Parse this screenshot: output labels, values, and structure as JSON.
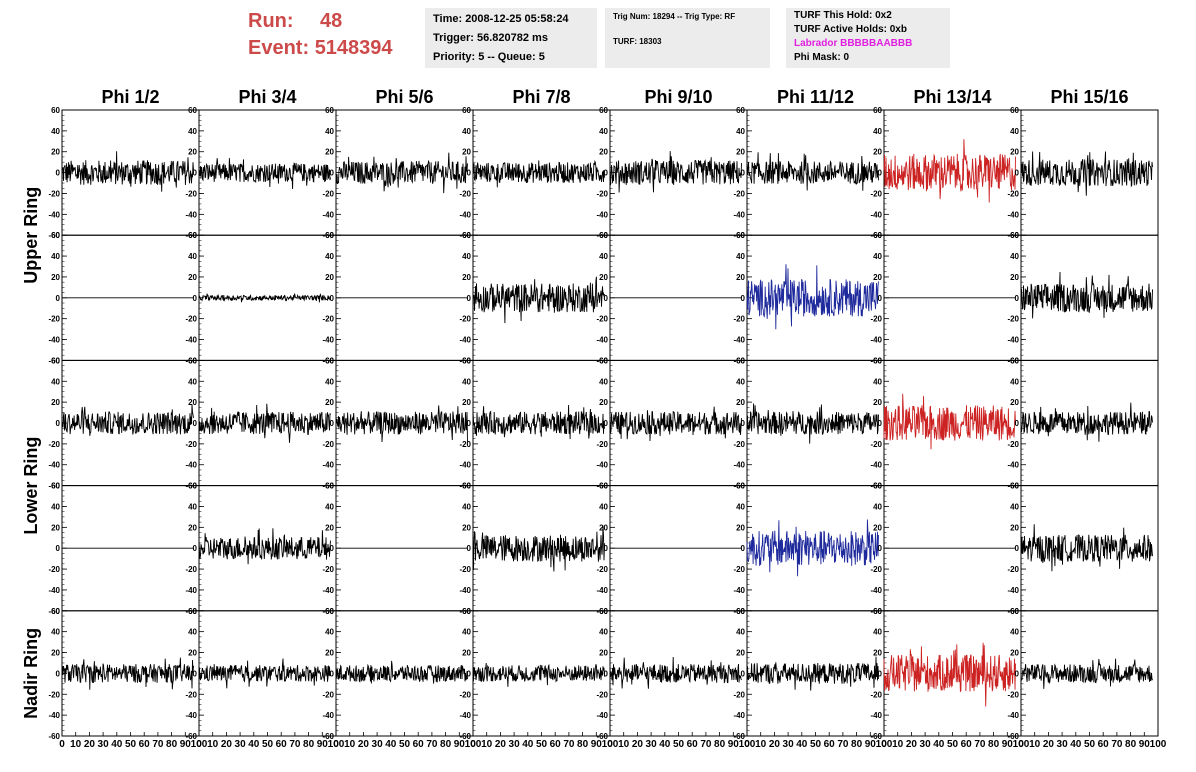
{
  "header": {
    "run_label": "Run:",
    "run_value": "48",
    "event_label": "Event:",
    "event_value": "5148394",
    "time": "Time: 2008-12-25 05:58:24",
    "trigger": "Trigger: 56.820782 ms",
    "priority": "Priority: 5 -- Queue: 5",
    "trig_num": "Trig Num: 18294 -- Trig Type: RF",
    "turf": "TURF: 18303",
    "turf_hold": "TURF This Hold: 0x2",
    "turf_active": "TURF Active Holds: 0xb",
    "labrador": "Labrador BBBBBAABBB",
    "phi_mask": "Phi Mask: 0"
  },
  "colors": {
    "header_red": "#cd4a4a",
    "labrador": "#e020e0",
    "trace_black": "#000000",
    "trace_red": "#cc2222",
    "trace_blue": "#1f2a9c",
    "info_bg": "#ececec"
  },
  "chart_data": {
    "type": "line",
    "columns": [
      "Phi 1/2",
      "Phi 3/4",
      "Phi 5/6",
      "Phi 7/8",
      "Phi 9/10",
      "Phi 11/12",
      "Phi 13/14",
      "Phi 15/16"
    ],
    "ring_labels": [
      "Upper Ring",
      "Lower Ring",
      "Nadir Ring"
    ],
    "xlim": [
      0,
      100
    ],
    "ylim": [
      -60,
      60
    ],
    "y_ticks": [
      -60,
      -40,
      -20,
      0,
      20,
      40,
      60
    ],
    "x_ticks": [
      0,
      10,
      20,
      30,
      40,
      50,
      60,
      70,
      80,
      90,
      100
    ],
    "x_tick_labels": [
      "0",
      "10",
      "20",
      "30",
      "40",
      "50",
      "60",
      "70",
      "80",
      "90",
      "100"
    ],
    "rows": [
      {
        "amp": [
          12,
          9,
          11,
          10,
          12,
          11,
          18,
          13
        ],
        "color": [
          "black",
          "black",
          "black",
          "black",
          "black",
          "black",
          "red",
          "black"
        ],
        "extent": [
          96,
          96,
          96,
          96,
          96,
          96,
          96,
          96
        ]
      },
      {
        "amp": [
          0,
          2.5,
          0,
          14,
          0,
          18,
          0,
          14
        ],
        "color": [
          "black",
          "black",
          "black",
          "black",
          "black",
          "blue",
          "black",
          "black"
        ],
        "extent": [
          96,
          96,
          96,
          96,
          96,
          96,
          96,
          96
        ]
      },
      {
        "amp": [
          11,
          11,
          11,
          11,
          11,
          11,
          17,
          11
        ],
        "color": [
          "black",
          "black",
          "black",
          "black",
          "black",
          "black",
          "red",
          "black"
        ],
        "extent": [
          96,
          96,
          96,
          96,
          96,
          96,
          96,
          96
        ]
      },
      {
        "amp": [
          0,
          11,
          0,
          13,
          0,
          17,
          0,
          13
        ],
        "color": [
          "black",
          "black",
          "black",
          "black",
          "black",
          "blue",
          "black",
          "black"
        ],
        "extent": [
          96,
          96,
          96,
          96,
          96,
          96,
          96,
          96
        ]
      },
      {
        "amp": [
          9,
          8,
          8,
          8,
          9,
          10,
          18,
          9
        ],
        "color": [
          "black",
          "black",
          "black",
          "black",
          "black",
          "black",
          "red",
          "black"
        ],
        "extent": [
          96,
          96,
          96,
          96,
          96,
          96,
          96,
          96
        ]
      }
    ]
  }
}
